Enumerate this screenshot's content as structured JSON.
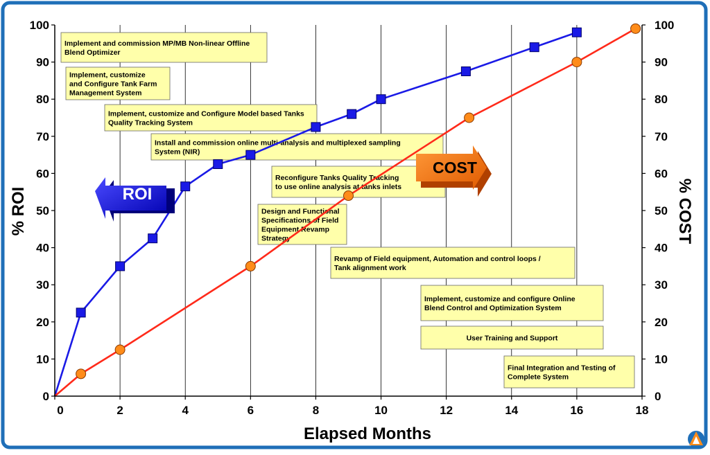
{
  "chart_data": {
    "type": "line",
    "xlabel": "Elapsed Months",
    "ylabel_left": "% ROI",
    "ylabel_right": "% COST",
    "xlim": [
      0,
      18
    ],
    "ylim": [
      0,
      100
    ],
    "x_ticks": [
      "0",
      "2",
      "4",
      "6",
      "8",
      "10",
      "12",
      "14",
      "16",
      "18"
    ],
    "y_ticks": [
      "0",
      "10",
      "20",
      "30",
      "40",
      "50",
      "60",
      "70",
      "80",
      "90",
      "100"
    ],
    "grid": "vertical lines at each 2 months",
    "series": [
      {
        "name": "ROI",
        "color": "#1a1ae6",
        "marker": "square",
        "x": [
          0,
          0.8,
          2,
          3,
          4,
          5,
          6,
          8,
          9.1,
          10,
          12.6,
          14.7,
          16
        ],
        "y": [
          0,
          22.5,
          35,
          42.5,
          56.5,
          62.5,
          65,
          72.5,
          76,
          80,
          87.5,
          94,
          98
        ]
      },
      {
        "name": "COST",
        "color": "#ff2a1a",
        "marker": "circle",
        "x": [
          0,
          0.8,
          2,
          6,
          9,
          12.7,
          16,
          17.8
        ],
        "y": [
          0,
          6,
          12.5,
          35,
          54,
          75,
          90,
          99
        ]
      }
    ],
    "arrow_labels": {
      "roi": "ROI",
      "cost": "COST"
    },
    "annotations": [
      {
        "lines": [
          "Implement and commission MP/MB Non-linear Offline",
          "Blend Optimizer"
        ]
      },
      {
        "lines": [
          "Implement, customize",
          "and Configure Tank Farm",
          "Management System"
        ]
      },
      {
        "lines": [
          "Implement, customize and Configure Model based Tanks",
          "Quality Tracking System"
        ]
      },
      {
        "lines": [
          "Install and commission online multi-analysis and multiplexed sampling",
          "System (NIR)"
        ]
      },
      {
        "lines": [
          "Reconfigure  Tanks  Quality  Tracking",
          "to use online analysis at tanks inlets"
        ]
      },
      {
        "lines": [
          "Design and Functional",
          "Specifications of Field",
          "Equipment Revamp",
          "Strategy"
        ]
      },
      {
        "lines": [
          "Revamp of Field equipment, Automation and control loops /",
          "Tank alignment work"
        ]
      },
      {
        "lines": [
          "Implement, customize and configure Online",
          "Blend Control and Optimization System"
        ]
      },
      {
        "lines": [
          "User Training and Support"
        ]
      },
      {
        "lines": [
          "Final Integration and Testing of",
          "Complete System"
        ]
      }
    ]
  },
  "colors": {
    "frame_border": "#1f6fb8",
    "box_fill": "#ffffaa",
    "roi_arrow": "#1a1ae6",
    "cost_arrow": "#ff7a1a",
    "cost_marker": "#ff8c1a"
  },
  "logo_icon": "company-logo-icon"
}
